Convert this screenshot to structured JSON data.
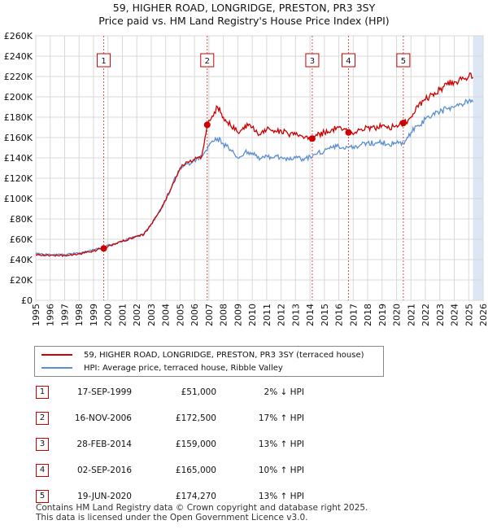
{
  "title_line1": "59, HIGHER ROAD, LONGRIDGE, PRESTON, PR3 3SY",
  "title_line2": "Price paid vs. HM Land Registry's House Price Index (HPI)",
  "colors": {
    "property": "#cc0000",
    "hpi": "#5b8fd1",
    "band": "#dce6f5",
    "grid": "#d8d8d8",
    "marker": "#cc0000"
  },
  "chart_data": {
    "type": "line",
    "y_ticks": [
      "£0",
      "£20K",
      "£40K",
      "£60K",
      "£80K",
      "£100K",
      "£120K",
      "£140K",
      "£160K",
      "£180K",
      "£200K",
      "£220K",
      "£240K",
      "£260K"
    ],
    "x_ticks": [
      "1995",
      "1996",
      "1997",
      "1998",
      "1999",
      "2000",
      "2001",
      "2002",
      "2003",
      "2004",
      "2005",
      "2006",
      "2007",
      "2008",
      "2009",
      "2010",
      "2011",
      "2012",
      "2013",
      "2014",
      "2015",
      "2016",
      "2017",
      "2018",
      "2019",
      "2020",
      "2021",
      "2022",
      "2023",
      "2024",
      "2025",
      "2026"
    ],
    "xlim": [
      1995,
      2026
    ],
    "ylim": [
      0,
      260000
    ],
    "grid": true,
    "shaded_future_from": 2025.3,
    "series": [
      {
        "name": "59, HIGHER ROAD, LONGRIDGE, PRESTON, PR3 3SY (terraced house)",
        "x": [
          1995,
          1996,
          1997,
          1998,
          1998.5,
          1999,
          1999.71,
          2000,
          2001,
          2002,
          2002.5,
          2003,
          2003.5,
          2004,
          2004.5,
          2005,
          2005.5,
          2006,
          2006.5,
          2006.88,
          2007,
          2007.3,
          2007.6,
          2008,
          2008.5,
          2009,
          2009.5,
          2010,
          2010.5,
          2011,
          2011.5,
          2012,
          2012.5,
          2013,
          2013.5,
          2014.16,
          2014.5,
          2015,
          2015.5,
          2016,
          2016.67,
          2017,
          2017.5,
          2018,
          2018.5,
          2019,
          2019.5,
          2020,
          2020.47,
          2020.8,
          2021,
          2021.5,
          2022,
          2022.5,
          2023,
          2023.5,
          2024,
          2024.5,
          2025,
          2025.3
        ],
        "values": [
          45000,
          44000,
          44000,
          45500,
          47000,
          48500,
          51000,
          53000,
          58000,
          63000,
          65000,
          75000,
          86000,
          98000,
          115000,
          130000,
          136000,
          138000,
          142000,
          172500,
          177000,
          181000,
          190000,
          180000,
          172000,
          165000,
          172000,
          170000,
          163000,
          168000,
          165000,
          167000,
          163000,
          163000,
          161000,
          159000,
          162000,
          165000,
          168000,
          170000,
          165000,
          163000,
          168000,
          170000,
          169000,
          172000,
          169000,
          172000,
          174270,
          177000,
          180000,
          190000,
          197000,
          203000,
          207000,
          212000,
          215000,
          217000,
          220000,
          219000
        ]
      },
      {
        "name": "HPI: Average price, terraced house, Ribble Valley",
        "x": [
          1995,
          1996,
          1997,
          1998,
          1998.5,
          1999,
          1999.71,
          2000,
          2001,
          2002,
          2002.5,
          2003,
          2003.5,
          2004,
          2004.5,
          2005,
          2005.5,
          2006,
          2006.5,
          2006.88,
          2007,
          2007.3,
          2007.6,
          2008,
          2008.5,
          2009,
          2009.5,
          2010,
          2010.5,
          2011,
          2011.5,
          2012,
          2012.5,
          2013,
          2013.5,
          2014.16,
          2014.5,
          2015,
          2015.5,
          2016,
          2016.67,
          2017,
          2017.5,
          2018,
          2018.5,
          2019,
          2019.5,
          2020,
          2020.47,
          2020.8,
          2021,
          2021.5,
          2022,
          2022.5,
          2023,
          2023.5,
          2024,
          2024.5,
          2025,
          2025.3
        ],
        "values": [
          46000,
          45000,
          45000,
          46500,
          48000,
          50000,
          52000,
          54000,
          58000,
          63000,
          65000,
          75000,
          86000,
          98000,
          115000,
          130000,
          134000,
          137000,
          141000,
          147500,
          152000,
          156000,
          159000,
          154000,
          148000,
          140000,
          146000,
          145000,
          138000,
          142000,
          140000,
          141000,
          139000,
          140000,
          139000,
          140700,
          144000,
          147000,
          150000,
          151000,
          150000,
          151000,
          153000,
          155000,
          154000,
          155000,
          153000,
          155000,
          154200,
          160000,
          165000,
          172000,
          178000,
          183000,
          185000,
          188000,
          190000,
          193000,
          196000,
          195000
        ]
      }
    ],
    "markers": [
      {
        "label": "1",
        "x": 1999.71,
        "y": 51000
      },
      {
        "label": "2",
        "x": 2006.88,
        "y": 172500
      },
      {
        "label": "3",
        "x": 2014.16,
        "y": 159000
      },
      {
        "label": "4",
        "x": 2016.67,
        "y": 165000
      },
      {
        "label": "5",
        "x": 2020.47,
        "y": 174270
      }
    ]
  },
  "legend": [
    "59, HIGHER ROAD, LONGRIDGE, PRESTON, PR3 3SY (terraced house)",
    "HPI: Average price, terraced house, Ribble Valley"
  ],
  "transactions": [
    {
      "num": "1",
      "date": "17-SEP-1999",
      "price": "£51,000",
      "hpi": "2% ↓ HPI"
    },
    {
      "num": "2",
      "date": "16-NOV-2006",
      "price": "£172,500",
      "hpi": "17% ↑ HPI"
    },
    {
      "num": "3",
      "date": "28-FEB-2014",
      "price": "£159,000",
      "hpi": "13% ↑ HPI"
    },
    {
      "num": "4",
      "date": "02-SEP-2016",
      "price": "£165,000",
      "hpi": "10% ↑ HPI"
    },
    {
      "num": "5",
      "date": "19-JUN-2020",
      "price": "£174,270",
      "hpi": "13% ↑ HPI"
    }
  ],
  "footer_line1": "Contains HM Land Registry data © Crown copyright and database right 2025.",
  "footer_line2": "This data is licensed under the Open Government Licence v3.0."
}
